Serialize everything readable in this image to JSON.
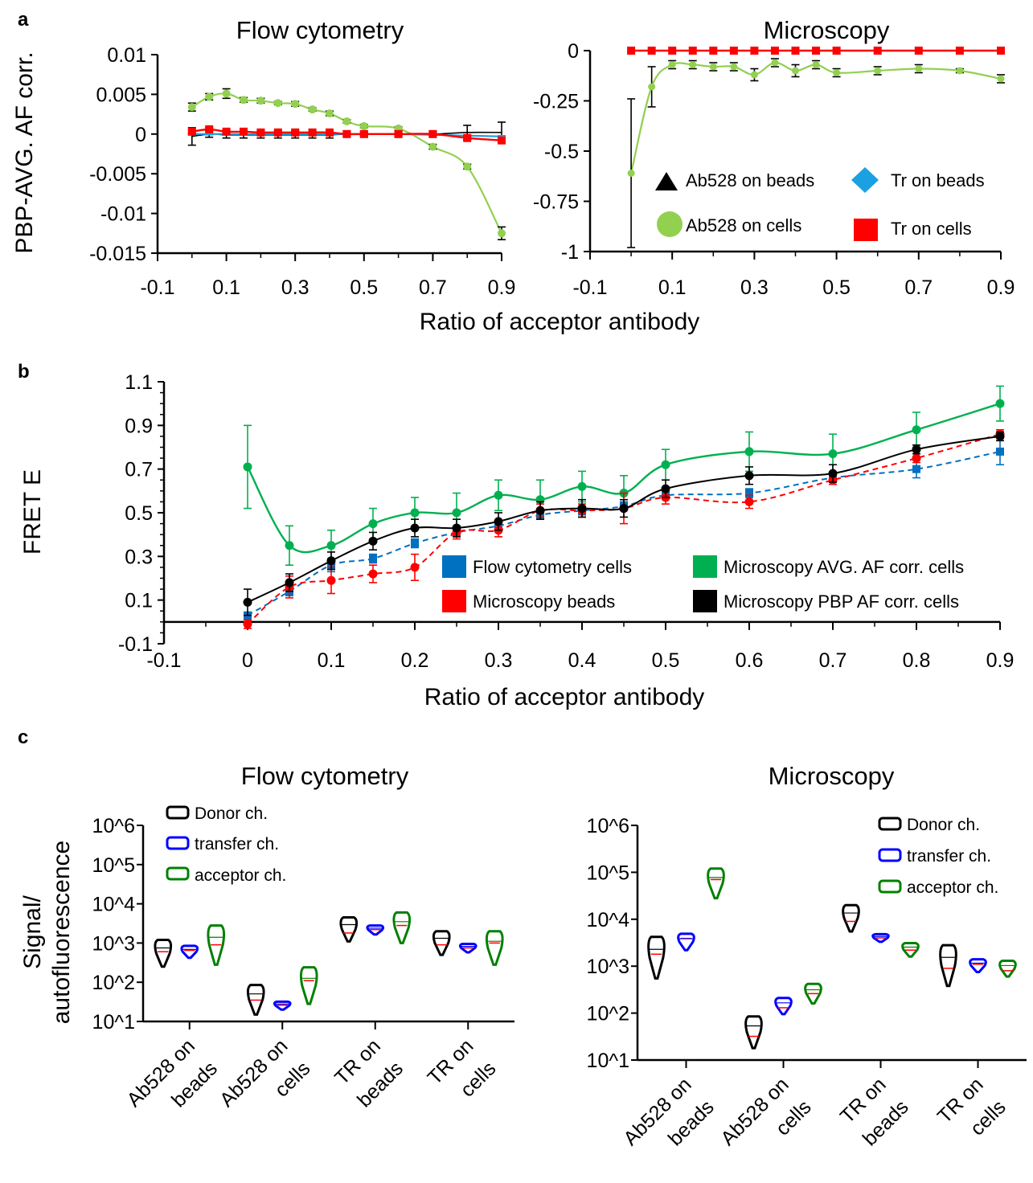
{
  "panels": {
    "a": {
      "letter": "a",
      "flow_title": "Flow cytometry",
      "micro_title": "Microscopy",
      "ylabel": "PBP-AVG. AF corr.",
      "xlabel": "Ratio of acceptor antibody",
      "legend": [
        "Ab528 on beads",
        "Tr on beads",
        "Ab528 on cells",
        "Tr on cells"
      ],
      "flow_yticks": [
        "0.01",
        "0.005",
        "0",
        "-0.005",
        "-0.01",
        "-0.015"
      ],
      "micro_yticks": [
        "0",
        "-0.25",
        "-0.5",
        "-0.75",
        "-1"
      ],
      "xticks": [
        "-0.1",
        "0.1",
        "0.3",
        "0.5",
        "0.7",
        "0.9"
      ]
    },
    "b": {
      "letter": "b",
      "ylabel": "FRET E",
      "xlabel": "Ratio of acceptor antibody",
      "legend": [
        "Flow cytometry cells",
        "Microscopy AVG. AF corr. cells",
        "Microscopy beads",
        "Microscopy PBP AF corr. cells"
      ],
      "yticks": [
        "1.1",
        "0.9",
        "0.7",
        "0.5",
        "0.3",
        "0.1",
        "-0.1"
      ],
      "xticks": [
        "-0.1",
        "0",
        "0.1",
        "0.2",
        "0.3",
        "0.4",
        "0.5",
        "0.6",
        "0.7",
        "0.8",
        "0.9"
      ]
    },
    "c": {
      "letter": "c",
      "ylabel_line1": "Signal/",
      "ylabel_line2": "autofluorescence",
      "flow_title": "Flow cytometry",
      "micro_title": "Microscopy",
      "legend": [
        "Donor ch.",
        "transfer ch.",
        "acceptor ch."
      ],
      "yticks": [
        "10^6",
        "10^5",
        "10^4",
        "10^3",
        "10^2",
        "10^1"
      ],
      "categories": [
        {
          "line1": "Ab528 on",
          "line2": "beads"
        },
        {
          "line1": "Ab528 on",
          "line2": "cells"
        },
        {
          "line1": "TR on",
          "line2": "beads"
        },
        {
          "line1": "TR on",
          "line2": "cells"
        }
      ]
    }
  },
  "colors": {
    "ab528_beads": "#000000",
    "tr_beads": "#1ba1e2",
    "ab528_cells": "#92d050",
    "tr_cells": "#ff0000",
    "flow_cells": "#0070c0",
    "micro_avg": "#00b050",
    "micro_beads": "#ff0000",
    "micro_pbp": "#000000",
    "donor": "#000000",
    "transfer": "#0000ff",
    "acceptor": "#008000"
  },
  "chart_data": [
    {
      "type": "line",
      "title": "Flow cytometry",
      "xlabel": "Ratio of acceptor antibody",
      "ylabel": "PBP-AVG. AF corr.",
      "xlim": [
        -0.1,
        0.9
      ],
      "ylim": [
        -0.015,
        0.01
      ],
      "x": [
        0,
        0.05,
        0.1,
        0.15,
        0.2,
        0.25,
        0.3,
        0.35,
        0.4,
        0.45,
        0.5,
        0.6,
        0.7,
        0.8,
        0.9
      ],
      "series": [
        {
          "name": "Ab528 on beads",
          "values": [
            -0.0003,
            0,
            -0.0001,
            -0.0001,
            -0.0001,
            -0.0001,
            -0.0001,
            -0.0001,
            -0.0001,
            0,
            0,
            0,
            0,
            0.0002,
            0.0002
          ],
          "errors": [
            0.0011,
            0.0004,
            0.0004,
            0.0004,
            0.0004,
            0.0004,
            0.0004,
            0.0004,
            0.0004,
            0.0004,
            0.0004,
            0.0004,
            0.0004,
            0.0009,
            0.0013
          ]
        },
        {
          "name": "Tr on beads",
          "values": [
            0,
            0,
            0,
            0,
            0,
            0,
            0,
            0,
            0,
            0,
            0,
            0,
            -0.0001,
            -0.0002,
            -0.0003
          ],
          "errors": [
            0.0001,
            0.0001,
            0.0001,
            0.0001,
            0.0001,
            0.0001,
            0.0001,
            0.0001,
            0.0001,
            0.0001,
            0.0001,
            0.0001,
            0.0001,
            0.0001,
            0.0001
          ]
        },
        {
          "name": "Ab528 on cells",
          "values": [
            0.0034,
            0.0047,
            0.0051,
            0.0043,
            0.0042,
            0.0039,
            0.0038,
            0.0031,
            0.0026,
            0.0016,
            0.001,
            0.0007,
            -0.0016,
            -0.0041,
            -0.0125
          ],
          "errors": [
            0.0005,
            0.0004,
            0.0006,
            0.0003,
            0.0003,
            0.0002,
            0.0003,
            0.0002,
            0.0003,
            0.0002,
            0.0002,
            0.0002,
            0.0003,
            0.0003,
            0.0008
          ]
        },
        {
          "name": "Tr on cells",
          "values": [
            0.0003,
            0.0006,
            0.0003,
            0.0003,
            0.0002,
            0.0002,
            0.0002,
            0.0002,
            0.0002,
            0,
            0,
            0,
            0,
            -0.0005,
            -0.0008
          ],
          "errors": [
            0.0002,
            0.0002,
            0.0002,
            0.0002,
            0.0002,
            0.0002,
            0.0002,
            0.0002,
            0.0002,
            0.0002,
            0.0002,
            0.0002,
            0.0002,
            0.0002,
            0.0002
          ]
        }
      ]
    },
    {
      "type": "line",
      "title": "Microscopy",
      "xlabel": "Ratio of acceptor antibody",
      "ylabel": "PBP-AVG. AF corr.",
      "xlim": [
        -0.1,
        0.9
      ],
      "ylim": [
        -1,
        0
      ],
      "x": [
        0,
        0.05,
        0.1,
        0.15,
        0.2,
        0.25,
        0.3,
        0.35,
        0.4,
        0.45,
        0.5,
        0.6,
        0.7,
        0.8,
        0.9
      ],
      "series": [
        {
          "name": "Ab528 on beads",
          "values": [
            0,
            0,
            0,
            0,
            0,
            0,
            0,
            0,
            0,
            0,
            0,
            0,
            0,
            0,
            0
          ]
        },
        {
          "name": "Tr on beads",
          "values": [
            0,
            0,
            0,
            0,
            0,
            0,
            0,
            0,
            0,
            0,
            0,
            0,
            0,
            0,
            0
          ]
        },
        {
          "name": "Ab528 on cells",
          "values": [
            -0.61,
            -0.18,
            -0.07,
            -0.07,
            -0.08,
            -0.08,
            -0.12,
            -0.06,
            -0.1,
            -0.07,
            -0.11,
            -0.1,
            -0.09,
            -0.1,
            -0.14
          ],
          "errors": [
            0.37,
            0.1,
            0.02,
            0.02,
            0.02,
            0.02,
            0.03,
            0.02,
            0.03,
            0.02,
            0.02,
            0.02,
            0.02,
            0.01,
            0.02
          ]
        },
        {
          "name": "Tr on cells",
          "values": [
            0,
            0,
            0,
            0,
            0,
            0,
            0,
            0,
            0,
            0,
            0,
            0,
            0,
            0,
            0
          ]
        }
      ]
    },
    {
      "type": "line",
      "xlabel": "Ratio of acceptor antibody",
      "ylabel": "FRET E",
      "xlim": [
        -0.1,
        0.9
      ],
      "ylim": [
        -0.1,
        1.1
      ],
      "x": [
        0,
        0.05,
        0.1,
        0.15,
        0.2,
        0.25,
        0.3,
        0.35,
        0.4,
        0.45,
        0.5,
        0.6,
        0.7,
        0.8,
        0.9
      ],
      "series": [
        {
          "name": "Flow cytometry cells",
          "values": [
            0.03,
            0.14,
            0.26,
            0.29,
            0.36,
            0.41,
            0.44,
            0.49,
            0.51,
            0.53,
            0.58,
            0.59,
            0.66,
            0.7,
            0.78
          ],
          "errors": [
            0.01,
            0.02,
            0.03,
            0.02,
            0.02,
            0.02,
            0.02,
            0.02,
            0.02,
            0.02,
            0.02,
            0.02,
            0.02,
            0.04,
            0.06
          ]
        },
        {
          "name": "Microscopy AVG. AF corr. cells",
          "values": [
            0.71,
            0.35,
            0.35,
            0.45,
            0.5,
            0.5,
            0.58,
            0.56,
            0.62,
            0.59,
            0.72,
            0.78,
            0.77,
            0.88,
            1.0
          ],
          "errors": [
            0.19,
            0.09,
            0.07,
            0.07,
            0.07,
            0.09,
            0.07,
            0.09,
            0.07,
            0.08,
            0.07,
            0.09,
            0.09,
            0.08,
            0.08
          ]
        },
        {
          "name": "Microscopy beads",
          "values": [
            -0.01,
            0.16,
            0.19,
            0.22,
            0.25,
            0.41,
            0.42,
            0.51,
            0.51,
            0.52,
            0.57,
            0.55,
            0.65,
            0.75,
            0.86
          ],
          "errors": [
            0.02,
            0.05,
            0.06,
            0.04,
            0.06,
            0.03,
            0.03,
            0.03,
            0.03,
            0.07,
            0.03,
            0.03,
            0.02,
            0.02,
            0.02
          ]
        },
        {
          "name": "Microscopy PBP AF corr. cells",
          "values": [
            0.09,
            0.18,
            0.28,
            0.37,
            0.43,
            0.43,
            0.46,
            0.51,
            0.52,
            0.52,
            0.61,
            0.67,
            0.68,
            0.79,
            0.85
          ],
          "errors": [
            0.06,
            0.04,
            0.04,
            0.04,
            0.04,
            0.04,
            0.04,
            0.04,
            0.04,
            0.04,
            0.04,
            0.04,
            0.04,
            0.02,
            0.02
          ]
        }
      ]
    },
    {
      "type": "violin",
      "title": "Flow cytometry",
      "ylabel": "Signal/ autofluorescence",
      "ylog": true,
      "ylim": [
        10,
        1000000
      ],
      "categories": [
        "Ab528 on beads",
        "Ab528 on cells",
        "TR on beads",
        "TR on cells"
      ],
      "series": [
        {
          "name": "Donor ch.",
          "min": [
            250,
            15,
            1100,
            500
          ],
          "max": [
            1200,
            85,
            4500,
            2000
          ],
          "median": [
            600,
            35,
            1800,
            900
          ]
        },
        {
          "name": "transfer ch.",
          "min": [
            420,
            20,
            1650,
            580
          ],
          "max": [
            850,
            32,
            2800,
            950
          ],
          "median": [
            650,
            26,
            2200,
            750
          ]
        },
        {
          "name": "acceptor ch.",
          "min": [
            280,
            28,
            1000,
            280
          ],
          "max": [
            2800,
            240,
            6000,
            2000
          ],
          "median": [
            900,
            110,
            2800,
            1000
          ]
        }
      ]
    },
    {
      "type": "violin",
      "title": "Microscopy",
      "ylabel": "Signal/ autofluorescence",
      "ylog": true,
      "ylim": [
        10,
        1000000
      ],
      "categories": [
        "Ab528 on beads",
        "Ab528 on cells",
        "TR on beads",
        "TR on cells"
      ],
      "series": [
        {
          "name": "Donor ch.",
          "min": [
            550,
            18,
            5500,
            380
          ],
          "max": [
            4200,
            85,
            20000,
            2800
          ],
          "median": [
            1800,
            32,
            9000,
            900
          ]
        },
        {
          "name": "transfer ch.",
          "min": [
            2200,
            95,
            3300,
            750
          ],
          "max": [
            4900,
            210,
            4800,
            1400
          ],
          "median": [
            3900,
            130,
            4000,
            1100
          ]
        },
        {
          "name": "acceptor ch.",
          "min": [
            28000,
            160,
            1600,
            600
          ],
          "max": [
            120000,
            420,
            3100,
            1300
          ],
          "median": [
            70000,
            260,
            2200,
            800
          ]
        }
      ]
    }
  ]
}
